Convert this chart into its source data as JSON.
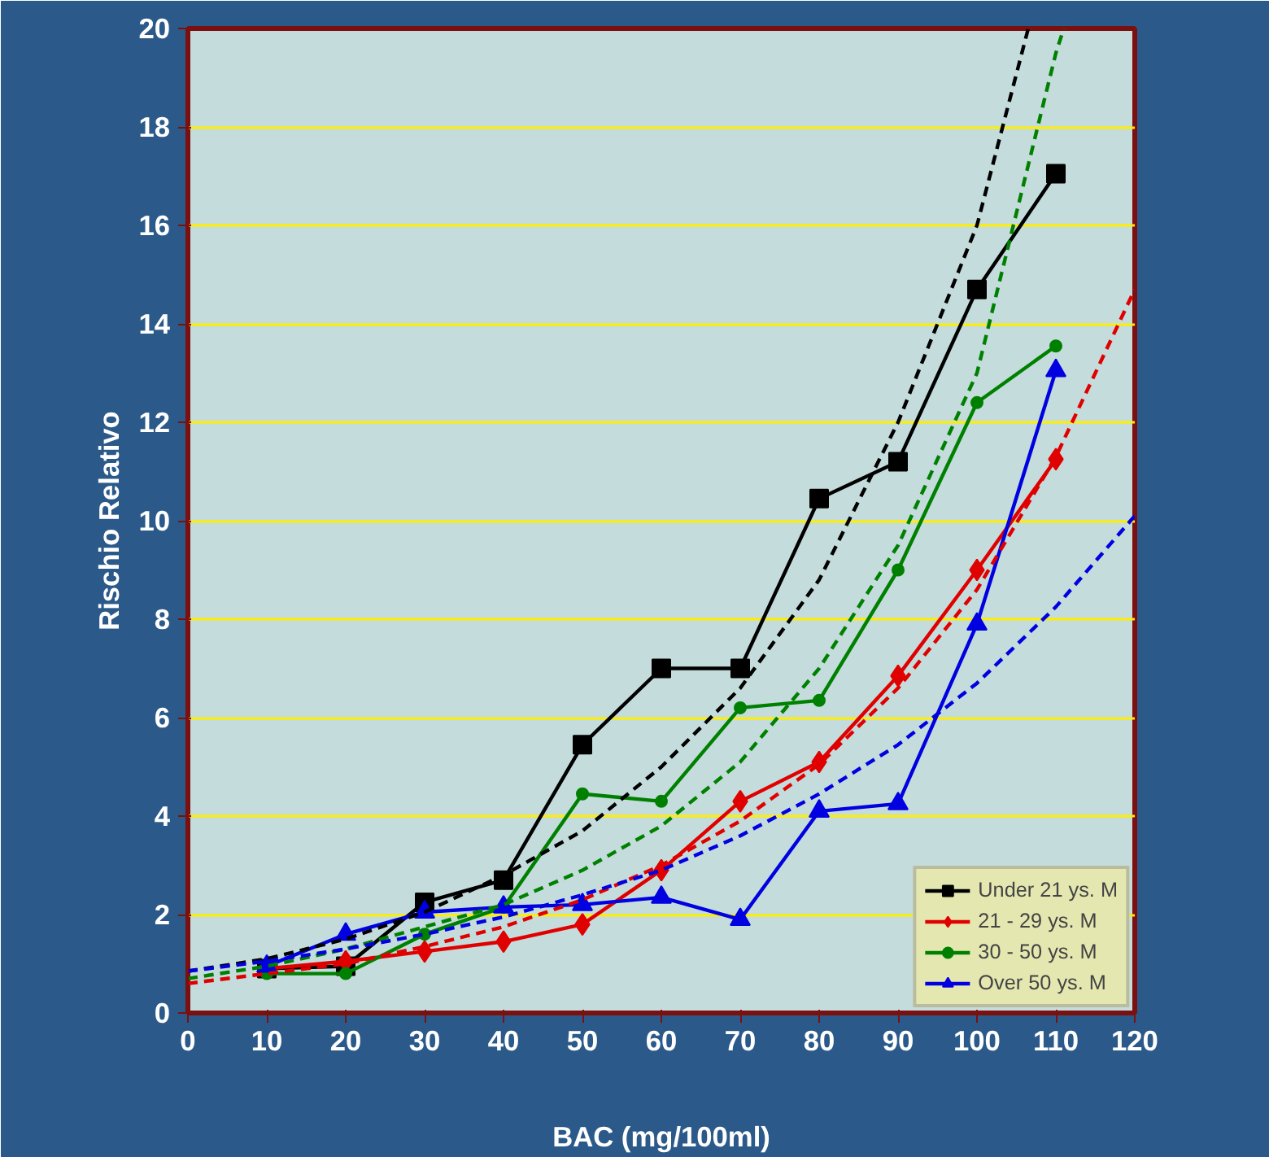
{
  "chart_data": {
    "type": "line",
    "xlabel": "BAC (mg/100ml)",
    "ylabel": "Rischio Relativo",
    "xlim": [
      0,
      120
    ],
    "xticks": [
      0,
      10,
      20,
      30,
      40,
      50,
      60,
      70,
      80,
      90,
      100,
      110,
      120
    ],
    "ylim": [
      0,
      20
    ],
    "yticks": [
      0,
      2,
      4,
      6,
      8,
      10,
      12,
      14,
      16,
      18,
      20
    ],
    "grid": "y",
    "legend": "bottom right",
    "x": [
      10,
      20,
      30,
      40,
      50,
      60,
      70,
      80,
      90,
      100,
      110
    ],
    "series": [
      {
        "name": "Under 21 ys. M",
        "color": "#000000",
        "marker": "square",
        "values": [
          0.9,
          0.95,
          2.25,
          2.7,
          5.45,
          7.0,
          7.0,
          10.45,
          11.2,
          14.7,
          17.05
        ]
      },
      {
        "name": "21 - 29 ys. M",
        "color": "#e00000",
        "marker": "diamond",
        "values": [
          0.9,
          1.05,
          1.25,
          1.45,
          1.8,
          2.9,
          4.3,
          5.1,
          6.85,
          9.0,
          11.25
        ]
      },
      {
        "name": "30 - 50 ys. M",
        "color": "#008000",
        "marker": "circle",
        "values": [
          0.8,
          0.8,
          1.6,
          2.15,
          4.45,
          4.3,
          6.2,
          6.35,
          9.0,
          12.4,
          13.55
        ]
      },
      {
        "name": "Over 50 ys. M",
        "color": "#0000e0",
        "marker": "triangle",
        "values": [
          0.95,
          1.6,
          2.05,
          2.15,
          2.2,
          2.35,
          1.9,
          4.1,
          4.25,
          7.9,
          13.05
        ]
      },
      {
        "color": "#000000",
        "marker": "none",
        "line_style": "dashed",
        "x": [
          0,
          10,
          20,
          30,
          40,
          50,
          60,
          70,
          80,
          90,
          100,
          106.5
        ],
        "values": [
          0.85,
          1.1,
          1.5,
          2.05,
          2.8,
          3.7,
          5.0,
          6.6,
          8.8,
          12.0,
          16.0,
          20.0
        ]
      },
      {
        "color": "#e00000",
        "marker": "none",
        "line_style": "dashed",
        "x": [
          0,
          10,
          20,
          30,
          40,
          50,
          60,
          70,
          80,
          90,
          100,
          110,
          120
        ],
        "values": [
          0.6,
          0.8,
          1.0,
          1.35,
          1.75,
          2.3,
          3.0,
          3.9,
          5.05,
          6.6,
          8.6,
          11.3,
          14.7
        ]
      },
      {
        "color": "#008000",
        "marker": "none",
        "line_style": "dashed",
        "x": [
          0,
          10,
          20,
          30,
          40,
          50,
          60,
          70,
          80,
          90,
          100,
          110,
          111
        ],
        "values": [
          0.7,
          0.95,
          1.3,
          1.75,
          2.2,
          2.9,
          3.8,
          5.1,
          7.0,
          9.5,
          13.0,
          19.5,
          20.0
        ]
      },
      {
        "color": "#0000e0",
        "marker": "none",
        "line_style": "dashed",
        "x": [
          0,
          10,
          20,
          30,
          40,
          50,
          60,
          70,
          80,
          90,
          100,
          110,
          120
        ],
        "values": [
          0.85,
          1.05,
          1.3,
          1.6,
          1.95,
          2.4,
          2.9,
          3.6,
          4.45,
          5.45,
          6.7,
          8.25,
          10.1
        ]
      }
    ]
  }
}
